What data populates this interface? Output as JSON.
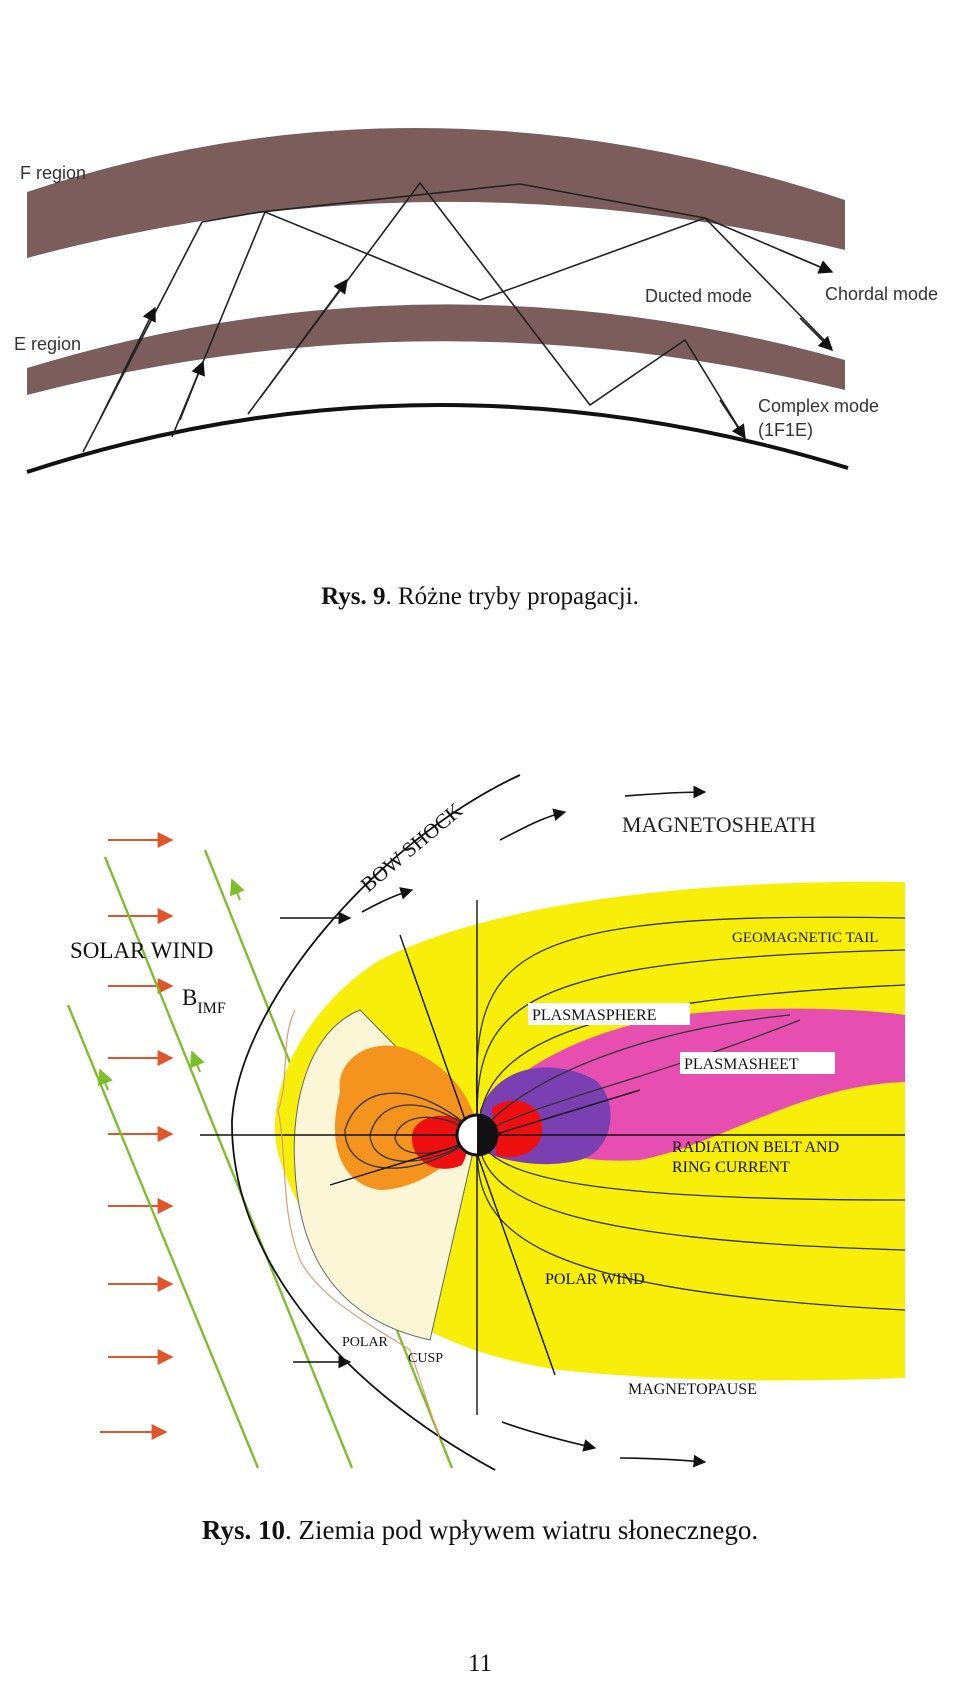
{
  "figure9": {
    "labels": {
      "f_region": "F region",
      "e_region": "E region",
      "ducted": "Ducted mode",
      "chordal": "Chordal mode",
      "complex_line1": "Complex mode",
      "complex_line2": "(1F1E)"
    },
    "caption": {
      "prefix": "Rys. 9",
      "text": ". Różne tryby propagacji."
    }
  },
  "figure10": {
    "labels": {
      "bow_shock": "BOW SHOCK",
      "magnetosheath": "MAGNETOSHEATH",
      "solar_wind": "SOLAR WIND",
      "b_imf_main": "B",
      "b_imf_sub": "IMF",
      "geomagnetic_tail": "GEOMAGNETIC TAIL",
      "plasmasphere": "PLASMASPHERE",
      "plasmasheet": "PLASMASHEET",
      "radiation_line1": "RADIATION BELT AND",
      "radiation_line2": "RING CURRENT",
      "polar_wind": "POLAR WIND",
      "polar": "POLAR",
      "cusp": "CUSP",
      "magnetopause": "MAGNETOPAUSE"
    },
    "caption": {
      "prefix": "Rys. 10",
      "text": ". Ziemia pod wpływem wiatru słonecznego."
    }
  },
  "page_number": "11",
  "colors": {
    "ionosphere_layer": "#7b5d5d",
    "solar_wind_arrow": "#e0552a",
    "imf_line": "#7dbf2a",
    "magnetosphere": "#f7ee0a",
    "dayside_light": "#fbf7d6",
    "orange_region": "#f5931f",
    "radiation_red": "#ee1010",
    "plasmasphere_purple": "#7a3fb0",
    "plasmasheet_pink": "#e64fb0"
  }
}
